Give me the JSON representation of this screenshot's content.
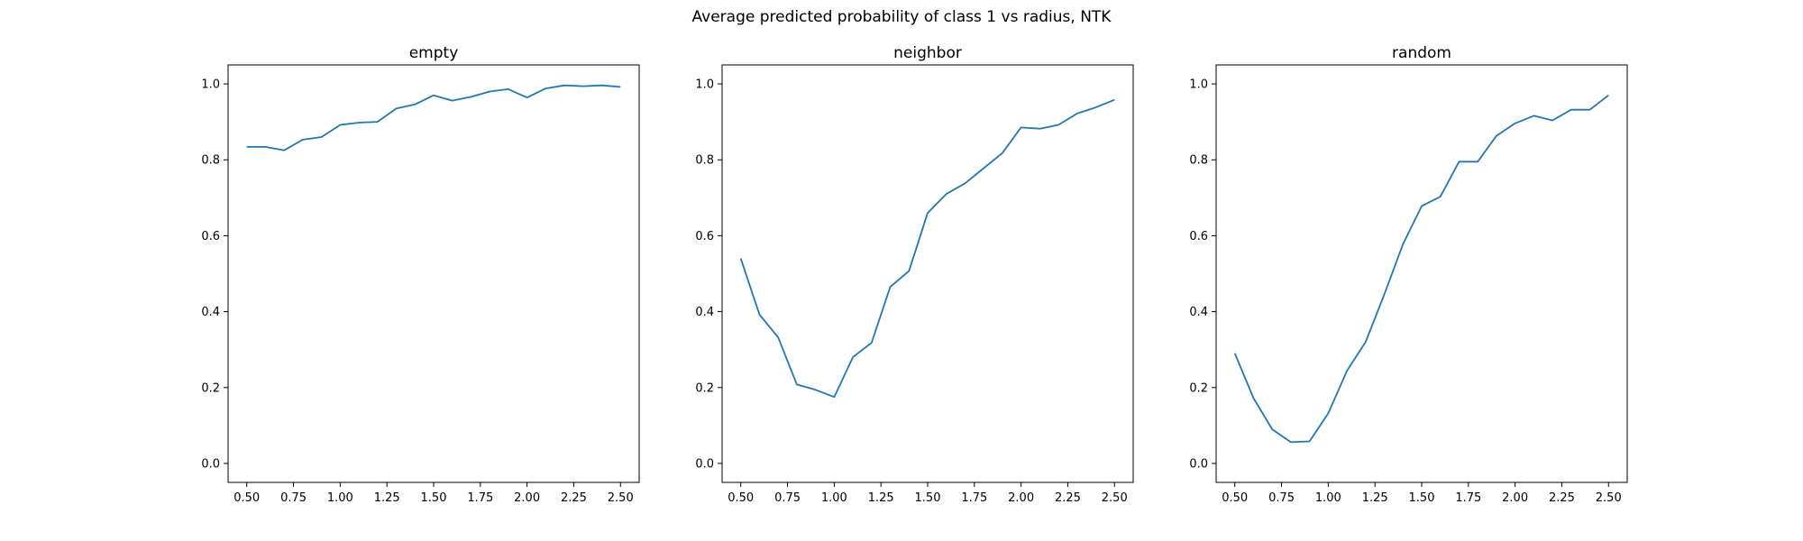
{
  "figure": {
    "title": "Average predicted probability of class 1 vs radius, NTK"
  },
  "chart_data": [
    {
      "type": "line",
      "title": "empty",
      "xlabel": "",
      "ylabel": "",
      "xlim": [
        0.4,
        2.6
      ],
      "ylim": [
        -0.05,
        1.05
      ],
      "xticks": [
        "0.50",
        "0.75",
        "1.00",
        "1.25",
        "1.50",
        "1.75",
        "2.00",
        "2.25",
        "2.50"
      ],
      "yticks": [
        "0.0",
        "0.2",
        "0.4",
        "0.6",
        "0.8",
        "1.0"
      ],
      "grid": false,
      "color": "#1f77b4",
      "x": [
        0.5,
        0.6,
        0.7,
        0.8,
        0.9,
        1.0,
        1.1,
        1.2,
        1.3,
        1.4,
        1.5,
        1.6,
        1.7,
        1.8,
        1.9,
        2.0,
        2.1,
        2.2,
        2.3,
        2.4,
        2.5
      ],
      "y": [
        0.834,
        0.834,
        0.825,
        0.853,
        0.86,
        0.892,
        0.898,
        0.9,
        0.935,
        0.946,
        0.97,
        0.956,
        0.966,
        0.98,
        0.986,
        0.964,
        0.988,
        0.996,
        0.994,
        0.996,
        0.992
      ]
    },
    {
      "type": "line",
      "title": "neighbor",
      "xlabel": "",
      "ylabel": "",
      "xlim": [
        0.4,
        2.6
      ],
      "ylim": [
        -0.05,
        1.05
      ],
      "xticks": [
        "0.50",
        "0.75",
        "1.00",
        "1.25",
        "1.50",
        "1.75",
        "2.00",
        "2.25",
        "2.50"
      ],
      "yticks": [
        "0.0",
        "0.2",
        "0.4",
        "0.6",
        "0.8",
        "1.0"
      ],
      "grid": false,
      "color": "#1f77b4",
      "x": [
        0.5,
        0.6,
        0.7,
        0.8,
        0.9,
        1.0,
        1.1,
        1.2,
        1.3,
        1.4,
        1.5,
        1.6,
        1.7,
        1.8,
        1.9,
        2.0,
        2.1,
        2.2,
        2.3,
        2.4,
        2.5
      ],
      "y": [
        0.54,
        0.392,
        0.332,
        0.208,
        0.194,
        0.175,
        0.28,
        0.318,
        0.465,
        0.507,
        0.66,
        0.71,
        0.738,
        0.778,
        0.818,
        0.885,
        0.882,
        0.892,
        0.922,
        0.938,
        0.958
      ]
    },
    {
      "type": "line",
      "title": "random",
      "xlabel": "",
      "ylabel": "",
      "xlim": [
        0.4,
        2.6
      ],
      "ylim": [
        -0.05,
        1.05
      ],
      "xticks": [
        "0.50",
        "0.75",
        "1.00",
        "1.25",
        "1.50",
        "1.75",
        "2.00",
        "2.25",
        "2.50"
      ],
      "yticks": [
        "0.0",
        "0.2",
        "0.4",
        "0.6",
        "0.8",
        "1.0"
      ],
      "grid": false,
      "color": "#1f77b4",
      "x": [
        0.5,
        0.6,
        0.7,
        0.8,
        0.9,
        1.0,
        1.1,
        1.2,
        1.3,
        1.4,
        1.5,
        1.6,
        1.7,
        1.8,
        1.9,
        2.0,
        2.1,
        2.2,
        2.3,
        2.4,
        2.5
      ],
      "y": [
        0.29,
        0.172,
        0.09,
        0.056,
        0.058,
        0.132,
        0.244,
        0.32,
        0.445,
        0.578,
        0.678,
        0.703,
        0.795,
        0.795,
        0.863,
        0.896,
        0.916,
        0.904,
        0.932,
        0.932,
        0.97
      ]
    }
  ]
}
